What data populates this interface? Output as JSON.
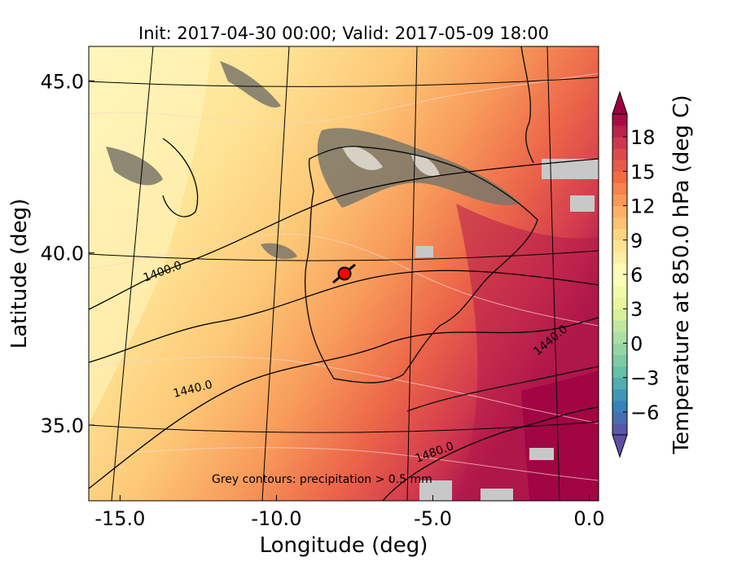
{
  "chart_data": {
    "type": "heatmap",
    "title": "Init: 2017-04-30 00:00; Valid: 2017-05-09 18:00",
    "xlabel": "Longitude (deg)",
    "ylabel": "Latitude (deg)",
    "xlim": [
      -16.0,
      0.3
    ],
    "ylim": [
      32.8,
      46.0
    ],
    "x_ticks": [
      -15.0,
      -10.0,
      -5.0,
      0.0
    ],
    "x_tick_labels": [
      "-15.0",
      "-10.0",
      "-5.0",
      "0.0"
    ],
    "y_ticks": [
      35.0,
      40.0,
      45.0
    ],
    "y_tick_labels": [
      "35.0",
      "40.0",
      "45.0"
    ],
    "colorbar": {
      "label": "Temperature at 850.0 hPa (deg C)",
      "range": [
        -8,
        20
      ],
      "extend": "both",
      "cmap": "Spectral_r",
      "ticks": [
        -6,
        -3,
        0,
        3,
        6,
        9,
        12,
        15,
        18
      ],
      "tick_labels": [
        "−6",
        "−3",
        "0",
        "3",
        "6",
        "9",
        "12",
        "15",
        "18"
      ]
    },
    "geopotential_contours": [
      {
        "label": "1400.0",
        "value": 1400.0
      },
      {
        "label": "1440.0",
        "value": 1440.0
      },
      {
        "label": "1440.0",
        "value": 1440.0
      },
      {
        "label": "1480.0",
        "value": 1480.0
      }
    ],
    "marker": {
      "lon": -7.7,
      "lat": 39.3,
      "color": "#ff0000"
    },
    "annotation": "Grey contours: precipitation  > 0.5 mm"
  }
}
